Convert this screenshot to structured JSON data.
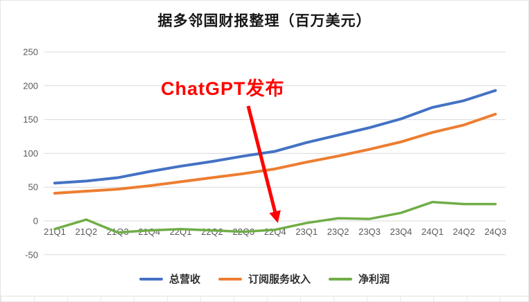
{
  "title": "据多邻国财报整理（百万美元）",
  "annotation": {
    "text": "ChatGPT发布",
    "color": "#ff0000",
    "target_category": "22Q4"
  },
  "chart_data": {
    "type": "line",
    "categories": [
      "21Q1",
      "21Q2",
      "21Q3",
      "21Q4",
      "22Q1",
      "22Q2",
      "22Q3",
      "22Q4",
      "23Q1",
      "23Q2",
      "23Q3",
      "23Q4",
      "24Q1",
      "24Q2",
      "24Q3"
    ],
    "series": [
      {
        "name": "总营收",
        "color": "#4472C4",
        "width": 4,
        "values": [
          56,
          59,
          64,
          73,
          81,
          88,
          96,
          103,
          116,
          127,
          138,
          151,
          168,
          178,
          193
        ]
      },
      {
        "name": "订阅服务收入",
        "color": "#ED7D31",
        "width": 4,
        "values": [
          41,
          44,
          47,
          52,
          58,
          64,
          70,
          77,
          87,
          96,
          106,
          117,
          131,
          142,
          158
        ]
      },
      {
        "name": "净利润",
        "color": "#70AD47",
        "width": 3.5,
        "values": [
          -12,
          2,
          -17,
          -14,
          -12,
          -14,
          -16,
          -13,
          -3,
          4,
          3,
          12,
          28,
          25,
          25
        ]
      }
    ],
    "title": "据多邻国财报整理（百万美元）",
    "xlabel": "",
    "ylabel": "",
    "ylim": [
      -50,
      250
    ],
    "ytick_step": 50,
    "grid": true,
    "legend_position": "bottom",
    "axis_text_color": "#595959",
    "grid_color": "#d9d9d9"
  }
}
